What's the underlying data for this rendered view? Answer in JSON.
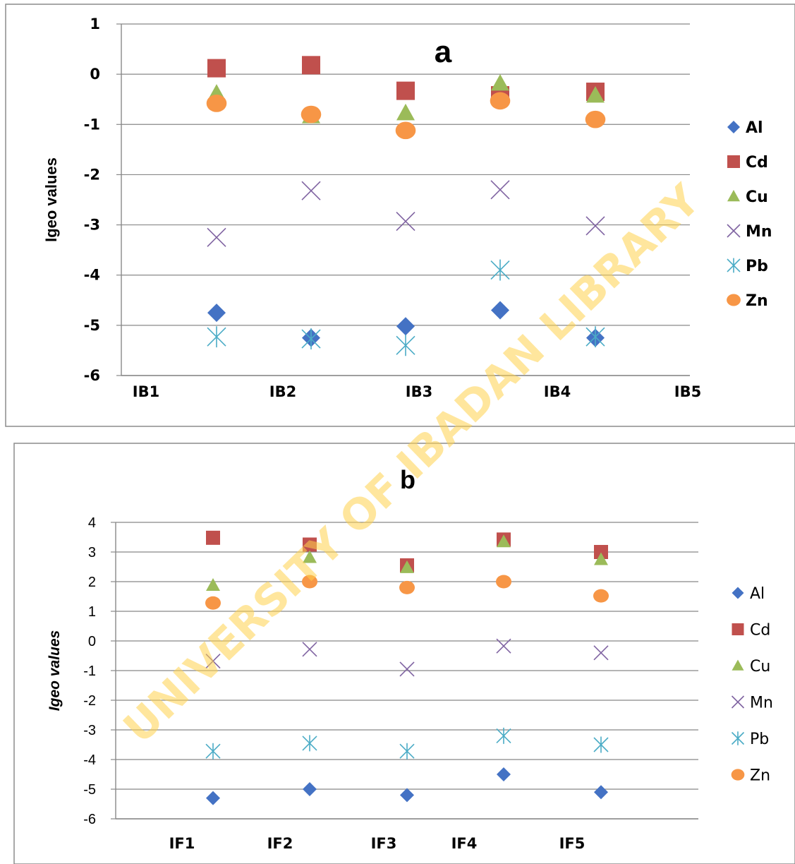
{
  "watermark": "UNIVERSITY OF IBADAN LIBRARY",
  "colors": {
    "Al": "#4472c4",
    "Cd": "#c0504d",
    "Cu": "#9bbb59",
    "Mn": "#8064a2",
    "Pb": "#4bacc6",
    "Zn": "#f79646",
    "grid": "#888888",
    "watermark": "#ffd24d"
  },
  "chart_data": [
    {
      "type": "scatter",
      "title": "a",
      "ylabel": "Igeo values",
      "xlabel": "",
      "ylim": [
        -6,
        1
      ],
      "yticks": [
        1,
        0,
        -1,
        -2,
        -3,
        -4,
        -5,
        -6
      ],
      "grid": "horizontal",
      "legend": "right",
      "x_tick_labels": [
        "IB1",
        "IB2",
        "IB3",
        "IB4",
        "IB5"
      ],
      "series": [
        {
          "name": "Al",
          "marker": "diamond",
          "values": [
            -4.75,
            -5.25,
            -5.02,
            -4.7,
            -5.25
          ]
        },
        {
          "name": "Cd",
          "marker": "square",
          "values": [
            0.12,
            0.18,
            -0.33,
            -0.42,
            -0.35
          ]
        },
        {
          "name": "Cu",
          "marker": "triangle",
          "values": [
            -0.38,
            -0.83,
            -0.77,
            -0.18,
            -0.42
          ]
        },
        {
          "name": "Mn",
          "marker": "x",
          "values": [
            -3.25,
            -2.32,
            -2.93,
            -2.3,
            -3.02
          ]
        },
        {
          "name": "Pb",
          "marker": "star",
          "values": [
            -5.23,
            -5.27,
            -5.4,
            -3.9,
            -5.23
          ]
        },
        {
          "name": "Zn",
          "marker": "circle",
          "values": [
            -0.58,
            -0.8,
            -1.12,
            -0.53,
            -0.9
          ]
        }
      ]
    },
    {
      "type": "scatter",
      "title": "b",
      "ylabel": "Igeo values",
      "xlabel": "",
      "ylim": [
        -6,
        4
      ],
      "yticks": [
        4,
        3,
        2,
        1,
        0,
        -1,
        -2,
        -3,
        -4,
        -5,
        -6
      ],
      "grid": "horizontal",
      "legend": "right",
      "x_tick_labels": [
        "IF1",
        "IF2",
        "IF3",
        "IF4",
        "IF5"
      ],
      "series": [
        {
          "name": "Al",
          "marker": "diamond",
          "values": [
            -5.3,
            -5.0,
            -5.2,
            -4.5,
            -5.1
          ]
        },
        {
          "name": "Cd",
          "marker": "square",
          "values": [
            3.48,
            3.25,
            2.55,
            3.42,
            3.0
          ]
        },
        {
          "name": "Cu",
          "marker": "triangle",
          "values": [
            1.88,
            2.82,
            2.48,
            3.35,
            2.75
          ]
        },
        {
          "name": "Mn",
          "marker": "x",
          "values": [
            -0.68,
            -0.28,
            -0.95,
            -0.17,
            -0.4
          ]
        },
        {
          "name": "Pb",
          "marker": "star",
          "values": [
            -3.72,
            -3.45,
            -3.72,
            -3.2,
            -3.5
          ]
        },
        {
          "name": "Zn",
          "marker": "circle",
          "values": [
            1.28,
            2.0,
            1.8,
            2.0,
            1.52
          ]
        }
      ]
    }
  ]
}
